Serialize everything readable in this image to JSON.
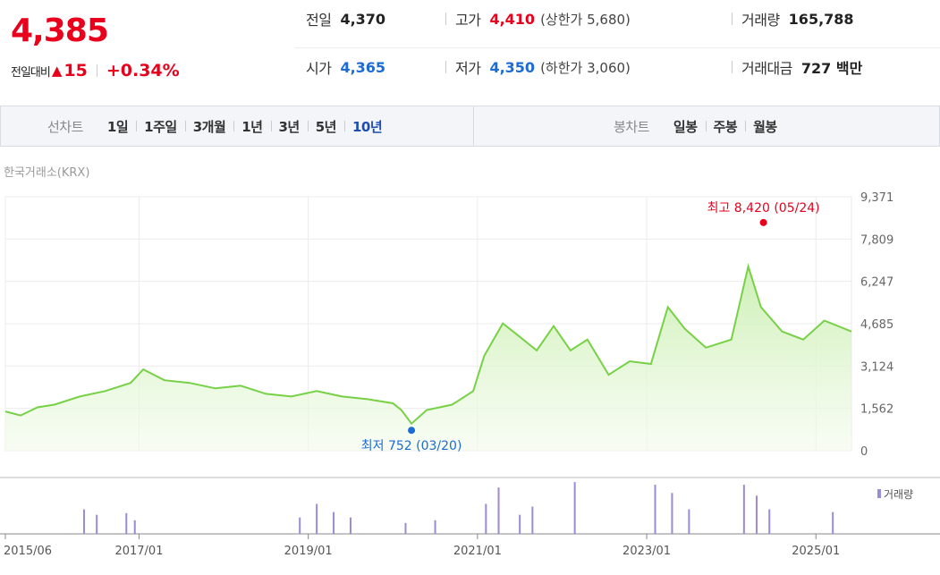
{
  "header": {
    "current_price": "4,385",
    "change_label": "전일대비",
    "change_arrow": "▲",
    "change_amount": "15",
    "change_pct": "+0.34%"
  },
  "info": {
    "prev_label": "전일",
    "prev_value": "4,370",
    "high_label": "고가",
    "high_value": "4,410",
    "upper_limit": "(상한가 5,680)",
    "volume_label": "거래량",
    "volume_value": "165,788",
    "open_label": "시가",
    "open_value": "4,365",
    "low_label": "저가",
    "low_value": "4,350",
    "lower_limit": "(하한가 3,060)",
    "amount_label": "거래대금",
    "amount_value": "727 백만"
  },
  "toolbar": {
    "line_title": "선차트",
    "line_items": [
      "1일",
      "1주일",
      "3개월",
      "1년",
      "3년",
      "5년",
      "10년"
    ],
    "line_active": "10년",
    "candle_title": "봉차트",
    "candle_items": [
      "일봉",
      "주봉",
      "월봉"
    ]
  },
  "source_label": "한국거래소(KRX)",
  "colors": {
    "up": "#e8001c",
    "down": "#1d6bd4",
    "line": "#77d146",
    "fill_top": "#c9efb0",
    "volume": "#9b8ad6"
  },
  "chart_data": {
    "type": "area",
    "y_ticks": [
      "9,371",
      "7,809",
      "6,247",
      "4,685",
      "3,124",
      "1,562",
      "0"
    ],
    "ylim": [
      0,
      9371
    ],
    "x_range": [
      2015.42,
      2025.42
    ],
    "x_ticks": [
      {
        "label": "2015/06",
        "x": 2015.42
      },
      {
        "label": "2017/01",
        "x": 2017.0
      },
      {
        "label": "2019/01",
        "x": 2019.0
      },
      {
        "label": "2021/01",
        "x": 2021.0
      },
      {
        "label": "2023/01",
        "x": 2023.0
      },
      {
        "label": "2025/01",
        "x": 2025.0
      }
    ],
    "series": [
      {
        "x": [
          2015.42,
          2015.6,
          2015.8,
          2016.0,
          2016.3,
          2016.6,
          2016.9,
          2017.05,
          2017.3,
          2017.6,
          2017.9,
          2018.2,
          2018.5,
          2018.8,
          2019.1,
          2019.4,
          2019.7,
          2020.0,
          2020.1,
          2020.22,
          2020.4,
          2020.7,
          2020.95,
          2021.08,
          2021.3,
          2021.5,
          2021.7,
          2021.9,
          2022.1,
          2022.3,
          2022.55,
          2022.8,
          2023.05,
          2023.25,
          2023.45,
          2023.7,
          2024.0,
          2024.2,
          2024.35,
          2024.6,
          2024.85,
          2025.1,
          2025.42
        ],
        "y": [
          1450,
          1300,
          1600,
          1700,
          2000,
          2200,
          2500,
          3000,
          2600,
          2500,
          2300,
          2400,
          2100,
          2000,
          2200,
          2000,
          1900,
          1750,
          1500,
          1000,
          1500,
          1700,
          2200,
          3500,
          4700,
          4200,
          3700,
          4600,
          3700,
          4100,
          2800,
          3300,
          3200,
          5300,
          4500,
          3800,
          4100,
          6800,
          5300,
          4400,
          4100,
          4800,
          4400
        ]
      }
    ],
    "high_marker": {
      "label": "최고 8,420 (05/24)",
      "value": 8420,
      "x": 2024.38
    },
    "low_marker": {
      "label": "최저 752 (03/20)",
      "value": 752,
      "x": 2020.22
    },
    "volume_legend": "거래량",
    "volume": {
      "x": [
        2016.35,
        2016.5,
        2016.85,
        2016.95,
        2018.9,
        2019.1,
        2019.3,
        2019.5,
        2020.15,
        2020.5,
        2021.1,
        2021.25,
        2021.5,
        2021.65,
        2022.15,
        2023.1,
        2023.3,
        2023.5,
        2024.15,
        2024.3,
        2024.45,
        2025.2
      ],
      "y": [
        0.45,
        0.35,
        0.38,
        0.25,
        0.3,
        0.55,
        0.4,
        0.3,
        0.2,
        0.25,
        0.55,
        0.85,
        0.35,
        0.5,
        0.95,
        0.9,
        0.75,
        0.45,
        0.9,
        0.7,
        0.45,
        0.4
      ]
    }
  }
}
